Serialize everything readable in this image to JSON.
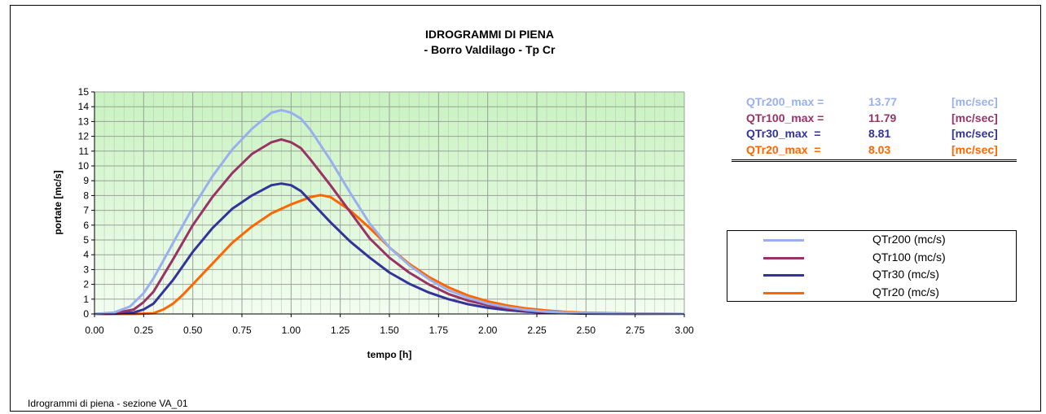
{
  "footer": "Idrogrammi di piena - sezione VA_01",
  "max_table": [
    {
      "label": "QTr200_max =",
      "value": "13.77",
      "unit": "[mc/sec]",
      "color": "#9ab0ee"
    },
    {
      "label": "QTr100_max =",
      "value": "11.79",
      "unit": "[mc/sec]",
      "color": "#993366"
    },
    {
      "label": "QTr30_max  =",
      "value": "8.81",
      "unit": "[mc/sec]",
      "color": "#333399"
    },
    {
      "label": "QTr20_max  =",
      "value": "8.03",
      "unit": "[mc/sec]",
      "color": "#ff6600"
    }
  ],
  "chart_data": {
    "type": "line",
    "title": "IDROGRAMMI DI PIENA",
    "subtitle": "- Borro Valdilago - Tp Cr",
    "xlabel": "tempo [h]",
    "ylabel": "portate [mc/s]",
    "xlim": [
      0,
      3
    ],
    "ylim": [
      0,
      15
    ],
    "xticks": [
      "0.00",
      "0.25",
      "0.50",
      "0.75",
      "1.00",
      "1.25",
      "1.50",
      "1.75",
      "2.00",
      "2.25",
      "2.50",
      "2.75",
      "3.00"
    ],
    "yticks": [
      "0",
      "1",
      "2",
      "3",
      "4",
      "5",
      "6",
      "7",
      "8",
      "9",
      "10",
      "11",
      "12",
      "13",
      "14",
      "15"
    ],
    "grid": true,
    "legend_position": "right",
    "background_gradient": [
      "#c8f2c0",
      "#f2fdf0"
    ],
    "series": [
      {
        "name": "QTr200 (mc/s)",
        "color": "#9ab0ee",
        "x": [
          0,
          0.1,
          0.18,
          0.25,
          0.3,
          0.4,
          0.5,
          0.6,
          0.7,
          0.8,
          0.9,
          0.95,
          1.0,
          1.05,
          1.1,
          1.2,
          1.3,
          1.4,
          1.5,
          1.6,
          1.7,
          1.8,
          1.9,
          2.0,
          2.1,
          2.2,
          2.3,
          2.5,
          2.75,
          3.0
        ],
        "y": [
          0,
          0.1,
          0.5,
          1.4,
          2.4,
          4.8,
          7.2,
          9.3,
          11.1,
          12.5,
          13.6,
          13.77,
          13.6,
          13.2,
          12.4,
          10.4,
          8.2,
          6.1,
          4.5,
          3.3,
          2.35,
          1.6,
          1.1,
          0.7,
          0.45,
          0.27,
          0.15,
          0.05,
          0.01,
          0
        ]
      },
      {
        "name": "QTr100 (mc/s)",
        "color": "#993366",
        "x": [
          0,
          0.1,
          0.2,
          0.25,
          0.3,
          0.4,
          0.5,
          0.6,
          0.7,
          0.8,
          0.9,
          0.95,
          1.0,
          1.05,
          1.1,
          1.2,
          1.3,
          1.4,
          1.5,
          1.6,
          1.7,
          1.8,
          1.9,
          2.0,
          2.1,
          2.2,
          2.3,
          2.5,
          2.75,
          3.0
        ],
        "y": [
          0,
          0.05,
          0.3,
          0.8,
          1.5,
          3.7,
          6.0,
          7.9,
          9.5,
          10.8,
          11.6,
          11.79,
          11.6,
          11.2,
          10.4,
          8.7,
          6.9,
          5.1,
          3.8,
          2.8,
          2.0,
          1.35,
          0.9,
          0.6,
          0.38,
          0.22,
          0.12,
          0.04,
          0.01,
          0
        ]
      },
      {
        "name": "QTr30 (mc/s)",
        "color": "#333399",
        "x": [
          0,
          0.1,
          0.2,
          0.25,
          0.3,
          0.4,
          0.5,
          0.6,
          0.7,
          0.8,
          0.9,
          0.95,
          1.0,
          1.05,
          1.1,
          1.2,
          1.3,
          1.4,
          1.5,
          1.6,
          1.7,
          1.8,
          1.9,
          2.0,
          2.1,
          2.2,
          2.3,
          2.5,
          2.75,
          3.0
        ],
        "y": [
          0,
          0.02,
          0.1,
          0.3,
          0.7,
          2.3,
          4.2,
          5.8,
          7.1,
          8.0,
          8.7,
          8.81,
          8.7,
          8.3,
          7.6,
          6.2,
          4.9,
          3.8,
          2.8,
          2.05,
          1.45,
          1.0,
          0.66,
          0.42,
          0.26,
          0.15,
          0.08,
          0.02,
          0,
          0
        ]
      },
      {
        "name": "QTr20 (mc/s)",
        "color": "#ff6600",
        "x": [
          0,
          0.2,
          0.3,
          0.35,
          0.4,
          0.45,
          0.5,
          0.6,
          0.7,
          0.8,
          0.9,
          1.0,
          1.1,
          1.15,
          1.2,
          1.3,
          1.4,
          1.5,
          1.6,
          1.7,
          1.8,
          1.9,
          2.0,
          2.1,
          2.2,
          2.3,
          2.4,
          2.5,
          2.75,
          3.0
        ],
        "y": [
          0,
          0,
          0.05,
          0.3,
          0.7,
          1.3,
          2.0,
          3.4,
          4.8,
          5.9,
          6.8,
          7.4,
          7.9,
          8.03,
          7.9,
          7.0,
          5.8,
          4.5,
          3.4,
          2.5,
          1.8,
          1.25,
          0.85,
          0.57,
          0.37,
          0.23,
          0.14,
          0.08,
          0.02,
          0
        ]
      }
    ]
  }
}
